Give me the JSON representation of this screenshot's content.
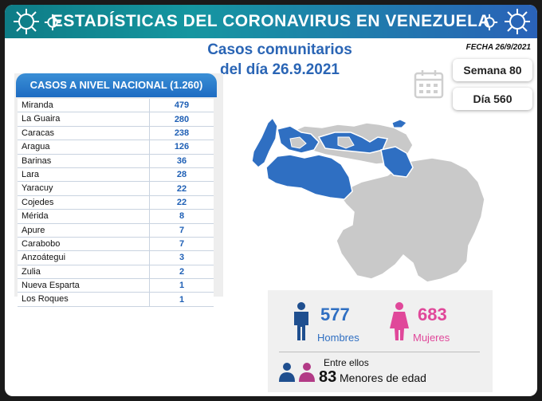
{
  "header": {
    "title": "ESTADÍSTICAS DEL CORONAVIRUS EN VENEZUELA"
  },
  "subtitle": {
    "line1": "Casos comunitarios",
    "line2": "del día 26.9.2021"
  },
  "fecha": "FECHA 26/9/2021",
  "semana": "Semana 80",
  "dia": "Día 560",
  "table": {
    "header": "CASOS A NIVEL NACIONAL (1.260)",
    "rows": [
      {
        "state": "Miranda",
        "value": "479"
      },
      {
        "state": "La Guaira",
        "value": "280"
      },
      {
        "state": "Caracas",
        "value": "238"
      },
      {
        "state": "Aragua",
        "value": "126"
      },
      {
        "state": "Barinas",
        "value": "36"
      },
      {
        "state": "Lara",
        "value": "28"
      },
      {
        "state": "Yaracuy",
        "value": "22"
      },
      {
        "state": "Cojedes",
        "value": "22"
      },
      {
        "state": "Mérida",
        "value": "8"
      },
      {
        "state": "Apure",
        "value": "7"
      },
      {
        "state": "Carabobo",
        "value": "7"
      },
      {
        "state": "Anzoátegui",
        "value": "3"
      },
      {
        "state": "Zulia",
        "value": "2"
      },
      {
        "state": "Nueva Esparta",
        "value": "1"
      },
      {
        "state": "Los Roques",
        "value": "1"
      }
    ]
  },
  "stats": {
    "men": {
      "value": "577",
      "label": "Hombres"
    },
    "women": {
      "value": "683",
      "label": "Mujeres"
    },
    "entre": "Entre ellos",
    "minors": {
      "value": "83",
      "label": "Menores de edad"
    }
  },
  "colors": {
    "blue": "#2f6fc2",
    "pink": "#e0489a",
    "gray": "#c9c9c9",
    "header_blue": "#1e6cc2"
  },
  "icons": [
    "virus-icon",
    "calendar-icon",
    "man-icon",
    "woman-icon",
    "children-icon"
  ]
}
